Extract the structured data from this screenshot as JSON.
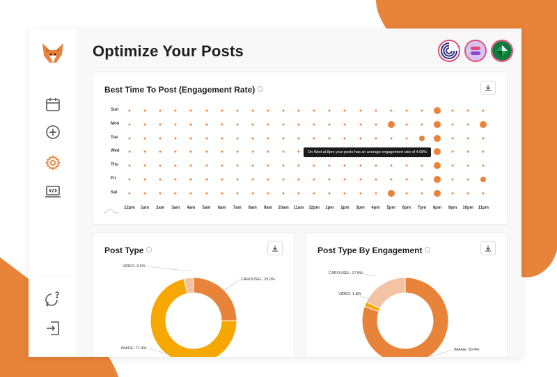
{
  "page": {
    "title": "Optimize Your Posts"
  },
  "colors": {
    "accent": "#e8833a",
    "yellow": "#f6a800",
    "peach": "#f3c3a4",
    "background_blob": "#e8833a"
  },
  "sidebar": {
    "logo": "fox-logo-icon",
    "items": [
      {
        "name": "calendar",
        "icon": "calendar-icon",
        "active": false
      },
      {
        "name": "create",
        "icon": "plus-circle-icon",
        "active": false
      },
      {
        "name": "settings",
        "icon": "gear-icon",
        "active": true
      },
      {
        "name": "embed",
        "icon": "laptop-code-icon",
        "active": false
      }
    ],
    "bottom": [
      {
        "name": "help",
        "icon": "chat-question-icon"
      },
      {
        "name": "logout",
        "icon": "logout-icon"
      }
    ]
  },
  "accounts": [
    {
      "icon": "account-avatar-1-icon"
    },
    {
      "icon": "account-avatar-2-icon"
    },
    {
      "icon": "account-avatar-3-icon"
    }
  ],
  "best_time": {
    "title": "Best Time To Post (Engagement Rate)",
    "tooltip": "On Wed at 8pm your posts has an average engagement rate of 4.08%"
  },
  "post_type": {
    "title": "Post Type",
    "labels": {
      "video": "VIDEO: 3.6%",
      "carousel": "CAROUSEL: 25.0%",
      "image": "IMAGE: 71.4%"
    }
  },
  "post_type_engagement": {
    "title": "Post Type By Engagement",
    "labels": {
      "carousel": "CAROUSEL: 17.8%",
      "video": "VIDEO: 1.8%",
      "image": "IMAGE: 80.4%"
    }
  },
  "chart_data": [
    {
      "type": "scatter",
      "title": "Best Time To Post (Engagement Rate)",
      "days": [
        "Sun",
        "Mon",
        "Tue",
        "Wed",
        "Thu",
        "Fri",
        "Sat"
      ],
      "times": [
        "12pm",
        "1am",
        "2am",
        "3am",
        "4am",
        "5am",
        "6am",
        "7am",
        "8am",
        "9am",
        "10am",
        "11am",
        "12pm",
        "1pm",
        "2pm",
        "3pm",
        "4pm",
        "5pm",
        "6pm",
        "7pm",
        "8pm",
        "9pm",
        "10pm",
        "11pm"
      ],
      "large_points": [
        {
          "day": "Sun",
          "time": "8pm",
          "level": 3
        },
        {
          "day": "Mon",
          "time": "5pm",
          "level": 3
        },
        {
          "day": "Mon",
          "time": "8pm",
          "level": 3
        },
        {
          "day": "Mon",
          "time": "11pm",
          "level": 3
        },
        {
          "day": "Tue",
          "time": "7pm",
          "level": 2
        },
        {
          "day": "Tue",
          "time": "8pm",
          "level": 3
        },
        {
          "day": "Wed",
          "time": "8pm",
          "level": 3
        },
        {
          "day": "Thu",
          "time": "8pm",
          "level": 3
        },
        {
          "day": "Fri",
          "time": "8pm",
          "level": 3
        },
        {
          "day": "Fri",
          "time": "11pm",
          "level": 2
        },
        {
          "day": "Sat",
          "time": "5pm",
          "level": 3
        },
        {
          "day": "Sat",
          "time": "8pm",
          "level": 3
        }
      ]
    },
    {
      "type": "pie",
      "title": "Post Type",
      "slices": [
        {
          "name": "CAROUSEL",
          "value": 25.0,
          "color": "#e8833a"
        },
        {
          "name": "IMAGE",
          "value": 71.4,
          "color": "#f6a800"
        },
        {
          "name": "VIDEO",
          "value": 3.6,
          "color": "#f3c3a4"
        }
      ]
    },
    {
      "type": "pie",
      "title": "Post Type By Engagement",
      "slices": [
        {
          "name": "IMAGE",
          "value": 80.4,
          "color": "#e8833a"
        },
        {
          "name": "VIDEO",
          "value": 1.8,
          "color": "#f6a800"
        },
        {
          "name": "CAROUSEL",
          "value": 17.8,
          "color": "#f3c3a4"
        }
      ]
    }
  ]
}
